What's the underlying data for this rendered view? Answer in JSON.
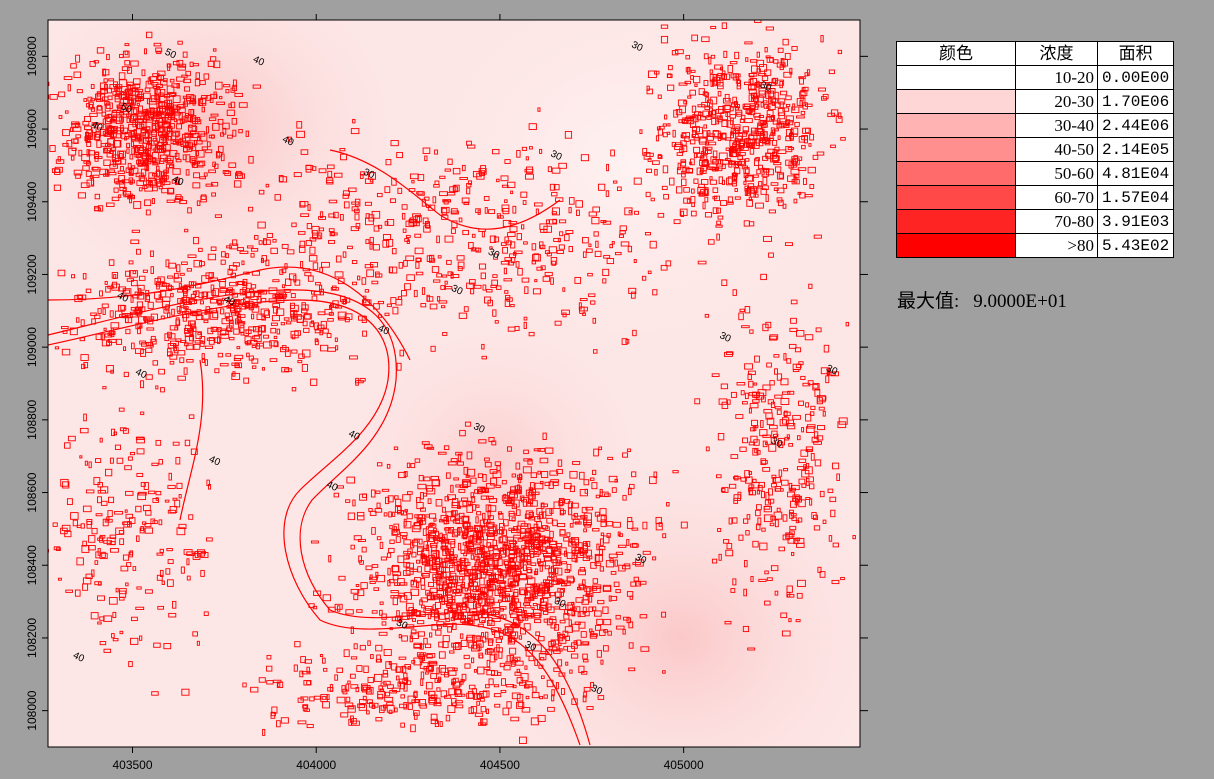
{
  "chart_data": {
    "type": "heatmap",
    "title": "",
    "xlabel": "",
    "ylabel": "",
    "xlim": [
      403270,
      405480
    ],
    "ylim": [
      107900,
      109900
    ],
    "x_ticks": [
      403500,
      404000,
      404500,
      405000
    ],
    "y_ticks": [
      108000,
      108200,
      108400,
      108600,
      108800,
      109000,
      109200,
      109400,
      109600,
      109800
    ],
    "contour_levels": [
      30,
      40,
      50
    ],
    "contour_labels": [
      {
        "text": "30",
        "x": 404650,
        "y": 109520
      },
      {
        "text": "30",
        "x": 404870,
        "y": 109820
      },
      {
        "text": "30",
        "x": 405220,
        "y": 109710
      },
      {
        "text": "30",
        "x": 405110,
        "y": 109020
      },
      {
        "text": "30",
        "x": 405400,
        "y": 108930
      },
      {
        "text": "30",
        "x": 405250,
        "y": 108730
      },
      {
        "text": "30",
        "x": 404880,
        "y": 108410
      },
      {
        "text": "30",
        "x": 404660,
        "y": 108290
      },
      {
        "text": "30",
        "x": 404230,
        "y": 108230
      },
      {
        "text": "30",
        "x": 404580,
        "y": 108170
      },
      {
        "text": "30",
        "x": 404760,
        "y": 108050
      },
      {
        "text": "30",
        "x": 404440,
        "y": 108770
      },
      {
        "text": "30",
        "x": 404380,
        "y": 109150
      },
      {
        "text": "30",
        "x": 404140,
        "y": 109470
      },
      {
        "text": "30",
        "x": 404480,
        "y": 109250
      },
      {
        "text": "40",
        "x": 403920,
        "y": 109560
      },
      {
        "text": "40",
        "x": 403840,
        "y": 109780
      },
      {
        "text": "40",
        "x": 403620,
        "y": 109450
      },
      {
        "text": "40",
        "x": 403470,
        "y": 109130
      },
      {
        "text": "40",
        "x": 403760,
        "y": 109120
      },
      {
        "text": "40",
        "x": 403520,
        "y": 108920
      },
      {
        "text": "40",
        "x": 403720,
        "y": 108680
      },
      {
        "text": "40",
        "x": 404100,
        "y": 108750
      },
      {
        "text": "40",
        "x": 404180,
        "y": 109040
      },
      {
        "text": "40",
        "x": 403350,
        "y": 108140
      },
      {
        "text": "40",
        "x": 404040,
        "y": 108610
      },
      {
        "text": "40",
        "x": 403400,
        "y": 109600
      },
      {
        "text": "50",
        "x": 403600,
        "y": 109800
      },
      {
        "text": "50",
        "x": 403480,
        "y": 109650
      }
    ],
    "legend": {
      "placement": "top-right",
      "headers": [
        "颜色",
        "浓度",
        "面积"
      ],
      "rows": [
        {
          "color": "#ffffff",
          "range": "10-20",
          "area": "0.00E00"
        },
        {
          "color": "#ffd6d6",
          "range": "20-30",
          "area": "1.70E06"
        },
        {
          "color": "#ffb3b3",
          "range": "30-40",
          "area": "2.44E06"
        },
        {
          "color": "#ff8f8f",
          "range": "40-50",
          "area": "2.14E05"
        },
        {
          "color": "#ff6b6b",
          "range": "50-60",
          "area": "4.81E04"
        },
        {
          "color": "#ff4848",
          "range": "60-70",
          "area": "1.57E04"
        },
        {
          "color": "#ff2424",
          "range": "70-80",
          "area": "3.91E03"
        },
        {
          "color": "#ff0000",
          "range": ">80",
          "area": "5.43E02"
        }
      ]
    },
    "max_label": "最大值:",
    "max_value": "9.0000E+01",
    "colors": {
      "background_fill": "#fde6e6",
      "contour_line": "#ff0000",
      "page_background": "#a0a0a0"
    }
  }
}
